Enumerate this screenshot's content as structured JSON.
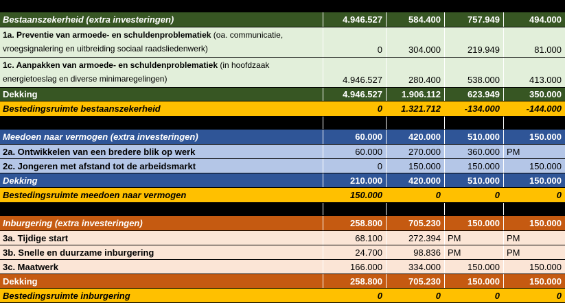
{
  "colors": {
    "page_background": "#000000",
    "bestaanszekerheid_header_bg": "#375623",
    "bestaanszekerheid_row_bg": "#E2EFDA",
    "meedoen_header_bg": "#2F5597",
    "meedoen_row_bg": "#B4C6E7",
    "inburgering_header_bg": "#C55A11",
    "inburgering_row_bg": "#FBE5D6",
    "bestedingsruimte_bg": "#FFC000",
    "header_text": "#FFFFFF",
    "body_text": "#000000"
  },
  "sections": [
    {
      "header": {
        "label": "Bestaanszekerheid (extra investeringen)",
        "values": [
          "4.946.527",
          "584.400",
          "757.949",
          "494.000"
        ]
      },
      "rows": [
        {
          "label_bold": "1a. Preventie van armoede- en schuldenproblematiek",
          "label_rest": " (oa. communicatie,",
          "label_line2": "vroegsignalering en uitbreiding sociaal raadsliedenwerk)",
          "values": [
            "0",
            "304.000",
            "219.949",
            "81.000"
          ]
        },
        {
          "label_bold": "1c. Aanpakken van armoede- en schuldenproblematiek",
          "label_rest": " (in hoofdzaak",
          "label_line2": "energietoeslag en diverse minimaregelingen)",
          "values": [
            "4.946.527",
            "280.400",
            "538.000",
            "413.000"
          ]
        }
      ],
      "dekking": {
        "label": "Dekking",
        "values": [
          "4.946.527",
          "1.906.112",
          "623.949",
          "350.000"
        ]
      },
      "bestedingsruimte": {
        "label": "Bestedingsruimte bestaanszekerheid",
        "values": [
          "0",
          "1.321.712",
          "-134.000",
          "-144.000"
        ]
      }
    },
    {
      "header": {
        "label": "Meedoen naar vermogen (extra investeringen)",
        "values": [
          "60.000",
          "420.000",
          "510.000",
          "150.000"
        ]
      },
      "rows": [
        {
          "label_bold": "2a. Ontwikkelen van een bredere blik op werk",
          "values": [
            "60.000",
            "270.000",
            "360.000",
            "PM"
          ]
        },
        {
          "label_bold": "2c. Jongeren met afstand tot de arbeidsmarkt",
          "values": [
            "0",
            "150.000",
            "150.000",
            "150.000"
          ]
        }
      ],
      "dekking": {
        "label": "Dekking",
        "values": [
          "210.000",
          "420.000",
          "510.000",
          "150.000"
        ]
      },
      "bestedingsruimte": {
        "label": "Bestedingsruimte meedoen naar vermogen",
        "values": [
          "150.000",
          "0",
          "0",
          "0"
        ]
      }
    },
    {
      "header": {
        "label": "Inburgering (extra investeringen)",
        "values": [
          "258.800",
          "705.230",
          "150.000",
          "150.000"
        ]
      },
      "rows": [
        {
          "label_bold": "3a. Tijdige start",
          "values": [
            "68.100",
            "272.394",
            "PM",
            "PM"
          ]
        },
        {
          "label_bold": "3b. Snelle en duurzame inburgering",
          "values": [
            "24.700",
            "98.836",
            "PM",
            "PM"
          ]
        },
        {
          "label_bold": "3c. Maatwerk",
          "values": [
            "166.000",
            "334.000",
            "150.000",
            "150.000"
          ]
        }
      ],
      "dekking": {
        "label": "Dekking",
        "values": [
          "258.800",
          "705.230",
          "150.000",
          "150.000"
        ]
      },
      "bestedingsruimte": {
        "label": "Bestedingsruimte inburgering",
        "values": [
          "0",
          "0",
          "0",
          "0"
        ]
      }
    }
  ]
}
